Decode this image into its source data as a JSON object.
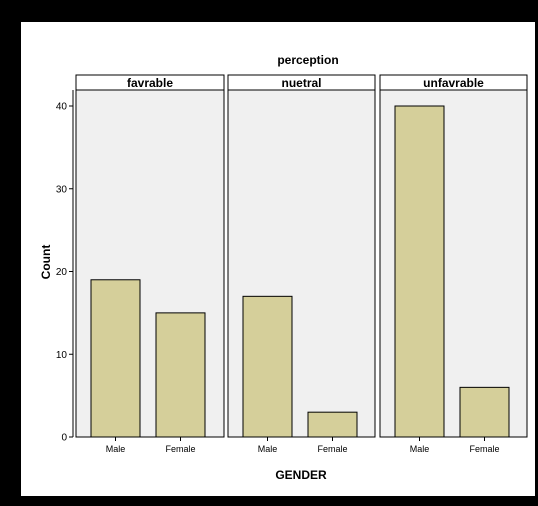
{
  "chart_data": {
    "type": "bar",
    "title": "perception",
    "xlabel": "GENDER",
    "ylabel": "Count",
    "ylim": [
      0,
      40
    ],
    "yticks": [
      0,
      10,
      20,
      30,
      40
    ],
    "categories": [
      "Male",
      "Female"
    ],
    "panels": [
      {
        "name": "favrable",
        "values": [
          19,
          15
        ]
      },
      {
        "name": "nuetral",
        "values": [
          17,
          3
        ]
      },
      {
        "name": "unfavrable",
        "values": [
          40,
          6
        ]
      }
    ],
    "colors": {
      "bar": "#d5cf9a",
      "panel_bg": "#f0f0f0",
      "edge": "#000000"
    }
  }
}
